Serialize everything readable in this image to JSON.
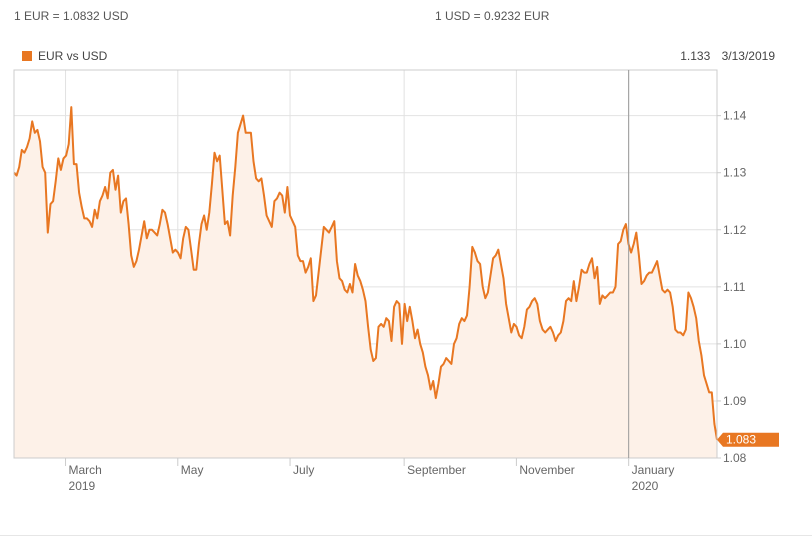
{
  "header": {
    "rate_left": "1 EUR = 1.0832 USD",
    "rate_right": "1 USD = 0.9232 EUR"
  },
  "legend": {
    "label": "EUR vs USD"
  },
  "readout": {
    "value": "1.133",
    "date": "3/13/2019"
  },
  "colors": {
    "line": "#e87722",
    "fill": "#fdf1e8",
    "grid": "#e2e2e2",
    "frame": "#cccccc",
    "cursor": "#999999",
    "label_text": "#ffffff"
  },
  "chart_data": {
    "type": "area",
    "title": "",
    "xlabel": "",
    "ylabel": "",
    "series": [
      {
        "name": "EUR vs USD",
        "values": [
          1.13,
          1.1295,
          1.131,
          1.134,
          1.1335,
          1.1345,
          1.136,
          1.139,
          1.137,
          1.1375,
          1.1355,
          1.131,
          1.13,
          1.1195,
          1.1245,
          1.125,
          1.1285,
          1.1325,
          1.1305,
          1.1325,
          1.133,
          1.135,
          1.1415,
          1.1315,
          1.1315,
          1.1265,
          1.124,
          1.122,
          1.122,
          1.1215,
          1.1205,
          1.1235,
          1.122,
          1.125,
          1.126,
          1.1275,
          1.1255,
          1.13,
          1.1305,
          1.127,
          1.1295,
          1.123,
          1.125,
          1.1255,
          1.121,
          1.1155,
          1.1135,
          1.1145,
          1.1165,
          1.119,
          1.1215,
          1.1185,
          1.12,
          1.12,
          1.1195,
          1.119,
          1.121,
          1.1235,
          1.123,
          1.121,
          1.1185,
          1.116,
          1.1165,
          1.116,
          1.115,
          1.1185,
          1.1205,
          1.12,
          1.1165,
          1.113,
          1.113,
          1.1175,
          1.121,
          1.1225,
          1.12,
          1.123,
          1.128,
          1.1335,
          1.132,
          1.133,
          1.127,
          1.121,
          1.1215,
          1.119,
          1.126,
          1.131,
          1.137,
          1.1385,
          1.14,
          1.137,
          1.137,
          1.137,
          1.132,
          1.129,
          1.1285,
          1.129,
          1.126,
          1.1225,
          1.1215,
          1.1205,
          1.125,
          1.1255,
          1.1265,
          1.126,
          1.123,
          1.1275,
          1.1225,
          1.1215,
          1.1205,
          1.1155,
          1.1145,
          1.1145,
          1.1125,
          1.1135,
          1.115,
          1.1075,
          1.1085,
          1.1125,
          1.1165,
          1.1205,
          1.12,
          1.1195,
          1.1205,
          1.1215,
          1.1145,
          1.1115,
          1.111,
          1.1095,
          1.109,
          1.1105,
          1.109,
          1.114,
          1.112,
          1.111,
          1.1095,
          1.1075,
          1.103,
          1.099,
          1.097,
          1.0975,
          1.103,
          1.1035,
          1.103,
          1.1045,
          1.104,
          1.1005,
          1.1065,
          1.1075,
          1.107,
          1.1,
          1.107,
          1.104,
          1.1065,
          1.104,
          1.101,
          1.1025,
          1.1,
          1.0985,
          1.096,
          1.0945,
          1.092,
          1.0935,
          1.0905,
          1.093,
          1.096,
          1.0965,
          1.0975,
          1.097,
          1.0965,
          1.1,
          1.101,
          1.1035,
          1.1045,
          1.104,
          1.105,
          1.11,
          1.117,
          1.116,
          1.1145,
          1.114,
          1.11,
          1.108,
          1.109,
          1.112,
          1.115,
          1.1155,
          1.1165,
          1.114,
          1.1115,
          1.107,
          1.1045,
          1.102,
          1.1035,
          1.103,
          1.1015,
          1.101,
          1.103,
          1.106,
          1.1065,
          1.1075,
          1.108,
          1.107,
          1.104,
          1.1025,
          1.102,
          1.1025,
          1.103,
          1.102,
          1.1005,
          1.1015,
          1.102,
          1.104,
          1.1075,
          1.108,
          1.1075,
          1.111,
          1.1075,
          1.11,
          1.113,
          1.1125,
          1.1125,
          1.114,
          1.115,
          1.1115,
          1.1135,
          1.107,
          1.1085,
          1.108,
          1.1085,
          1.109,
          1.109,
          1.11,
          1.1175,
          1.118,
          1.12,
          1.121,
          1.1175,
          1.116,
          1.1175,
          1.1195,
          1.1155,
          1.1105,
          1.111,
          1.112,
          1.1125,
          1.1125,
          1.1135,
          1.1145,
          1.112,
          1.1095,
          1.109,
          1.1095,
          1.109,
          1.1065,
          1.1025,
          1.102,
          1.102,
          1.1015,
          1.1025,
          1.109,
          1.108,
          1.1065,
          1.1045,
          1.1005,
          1.098,
          1.0945,
          1.093,
          1.0915,
          1.0915,
          1.086,
          1.0832
        ]
      }
    ],
    "x_start": "2019-02-01",
    "x_end": "2020-02-18",
    "ylim": [
      1.08,
      1.148
    ],
    "y_ticks": [
      "1.08",
      "1.09",
      "1.10",
      "1.11",
      "1.12",
      "1.13",
      "1.14"
    ],
    "x_ticks": [
      {
        "label": "March",
        "sublabel": "2019",
        "date": "2019-03-01"
      },
      {
        "label": "May",
        "sublabel": "",
        "date": "2019-05-01"
      },
      {
        "label": "July",
        "sublabel": "",
        "date": "2019-07-01"
      },
      {
        "label": "September",
        "sublabel": "",
        "date": "2019-09-01"
      },
      {
        "label": "November",
        "sublabel": "",
        "date": "2019-11-01"
      },
      {
        "label": "January",
        "sublabel": "2020",
        "date": "2020-01-01"
      }
    ],
    "cursor_date": "2020-01-01",
    "last_value_label": "1.083",
    "last_value": 1.0832,
    "grid": true,
    "legend_position": "top-left"
  }
}
